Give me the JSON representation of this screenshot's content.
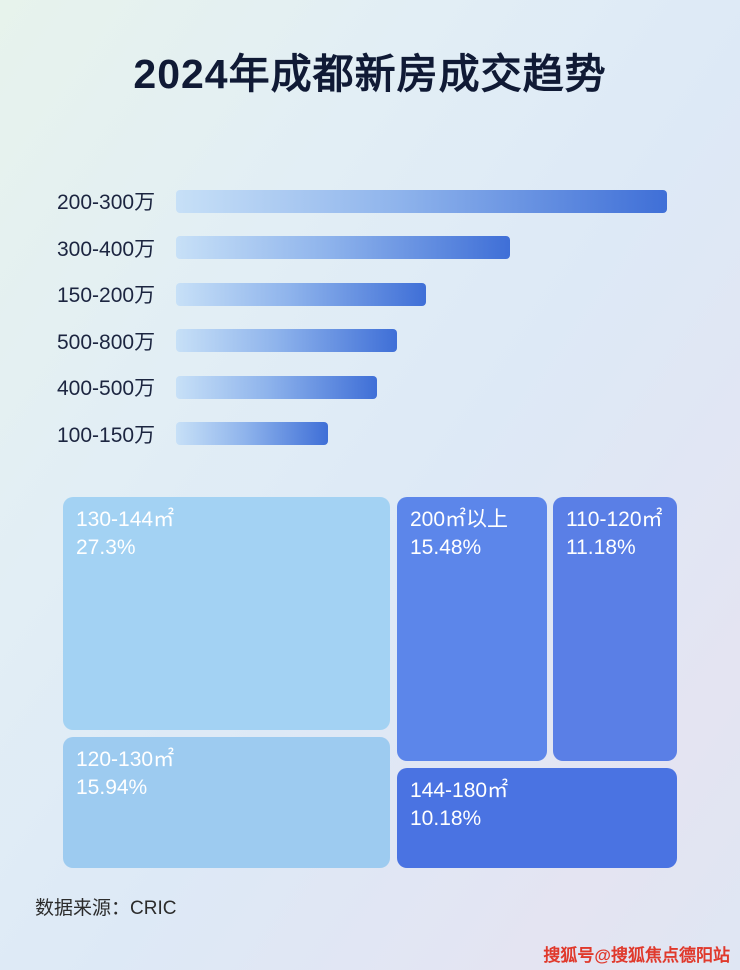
{
  "page": {
    "title": "2024年成都新房成交趋势",
    "footer": "数据来源：CRIC",
    "watermark": "搜狐号@搜狐焦点德阳站"
  },
  "colors": {
    "bar_gradient_start": "#c7e0f7",
    "bar_gradient_end": "#3f6fd7",
    "treemap_light_blue": "#a3d2f3",
    "treemap_medium_blue": "#5c86ea",
    "treemap_dark_blue": "#4a73e2",
    "title_text": "#101a35",
    "watermark_red": "#e0392c"
  },
  "chart_data": [
    {
      "type": "bar",
      "orientation": "horizontal",
      "title": "2024年成都新房成交趋势",
      "categories": [
        "200-300万",
        "300-400万",
        "150-200万",
        "500-800万",
        "400-500万",
        "100-150万"
      ],
      "values": [
        100,
        68,
        51,
        45,
        41,
        31
      ],
      "values_note": "relative bar lengths as % of longest bar; no numeric axis or data labels are shown in the image",
      "xlabel": "",
      "ylabel": "",
      "grid": false,
      "legend": false
    },
    {
      "type": "treemap",
      "title": "",
      "items": [
        {
          "label": "130-144㎡",
          "value": 27.3,
          "value_label": "27.3%"
        },
        {
          "label": "120-130㎡",
          "value": 15.94,
          "value_label": "15.94%"
        },
        {
          "label": "200㎡以上",
          "value": 15.48,
          "value_label": "15.48%"
        },
        {
          "label": "110-120㎡",
          "value": 11.18,
          "value_label": "11.18%"
        },
        {
          "label": "144-180㎡",
          "value": 10.18,
          "value_label": "10.18%"
        }
      ]
    }
  ]
}
